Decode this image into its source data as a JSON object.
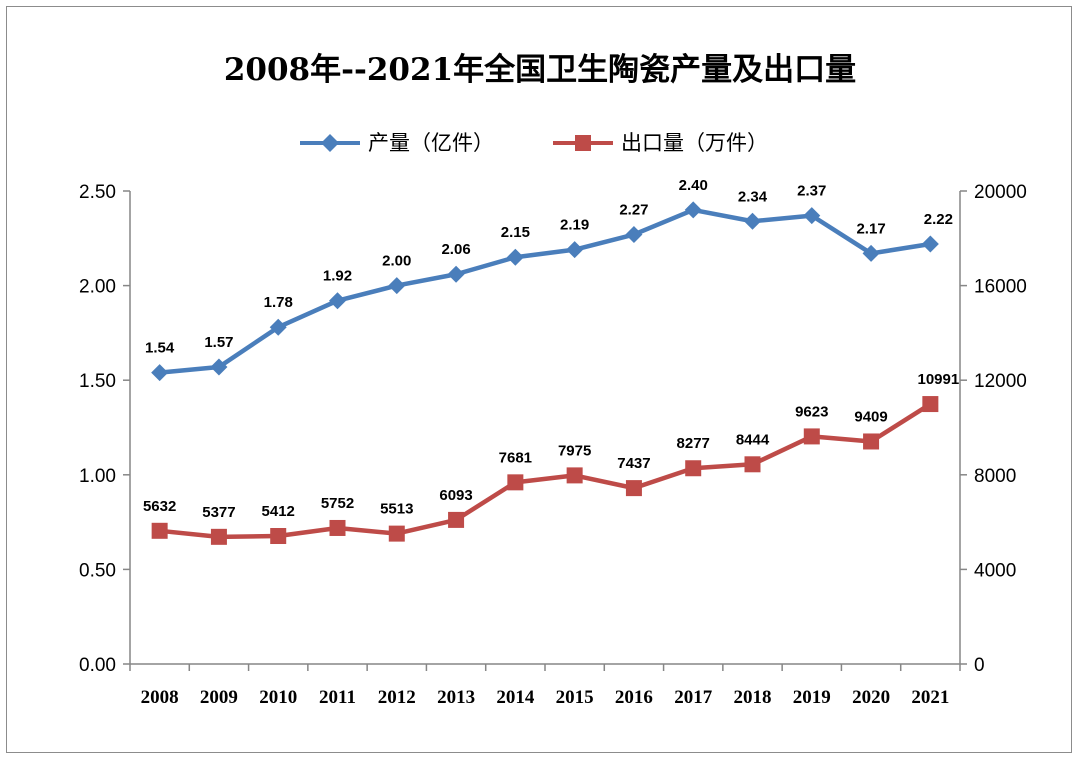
{
  "chart_data": {
    "type": "line",
    "title": "2008年--2021年全国卫生陶瓷产量及出口量",
    "categories": [
      "2008",
      "2009",
      "2010",
      "2011",
      "2012",
      "2013",
      "2014",
      "2015",
      "2016",
      "2017",
      "2018",
      "2019",
      "2020",
      "2021"
    ],
    "series": [
      {
        "name": "产量（亿件）",
        "axis": "left",
        "color": "#4a7ebb",
        "marker": "diamond",
        "values": [
          1.54,
          1.57,
          1.78,
          1.92,
          2.0,
          2.06,
          2.15,
          2.19,
          2.27,
          2.4,
          2.34,
          2.37,
          2.17,
          2.22
        ],
        "labels": [
          "1.54",
          "1.57",
          "1.78",
          "1.92",
          "2.00",
          "2.06",
          "2.15",
          "2.19",
          "2.27",
          "2.40",
          "2.34",
          "2.37",
          "2.17",
          "2.22"
        ]
      },
      {
        "name": "出口量（万件）",
        "axis": "right",
        "color": "#be4b48",
        "marker": "square",
        "values": [
          5632,
          5377,
          5412,
          5752,
          5513,
          6093,
          7681,
          7975,
          7437,
          8277,
          8444,
          9623,
          9409,
          10991
        ],
        "labels": [
          "5632",
          "5377",
          "5412",
          "5752",
          "5513",
          "6093",
          "7681",
          "7975",
          "7437",
          "8277",
          "8444",
          "9623",
          "9409",
          "10991"
        ]
      }
    ],
    "y_left": {
      "range": [
        0,
        2.5
      ],
      "ticks": [
        "0.00",
        "0.50",
        "1.00",
        "1.50",
        "2.00",
        "2.50"
      ]
    },
    "y_right": {
      "range": [
        0,
        20000
      ],
      "ticks": [
        "0",
        "4000",
        "8000",
        "12000",
        "16000",
        "20000"
      ]
    },
    "legend": "top-center",
    "grid": false
  }
}
